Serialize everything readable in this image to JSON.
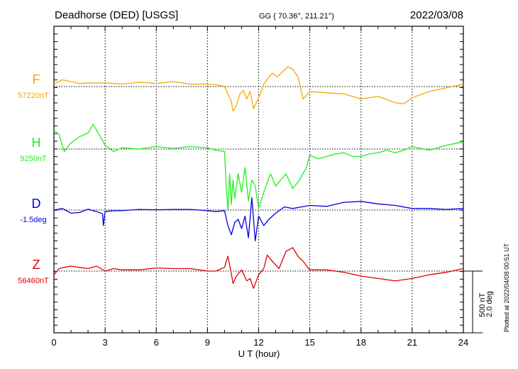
{
  "header": {
    "station": "Deadhorse (DED)  [USGS]",
    "coords": "GG ( 70.36°, 211.21°)",
    "date": "2022/03/08"
  },
  "footer": {
    "xlabel": "U T (hour)",
    "plotted": "Plotted at 2022/04/08 00:51 UT"
  },
  "scale_bar": {
    "line1": "500 nT",
    "line2": "2.0 deg"
  },
  "chart_data": {
    "type": "line",
    "xlim": [
      0,
      24
    ],
    "xticks": [
      "0",
      "3",
      "6",
      "9",
      "12",
      "15",
      "18",
      "21",
      "24"
    ],
    "xlabel": "U T (hour)",
    "grid": "dotted vertical at 3-hour intervals",
    "series": [
      {
        "name": "F",
        "baseline_label": "57220nT",
        "color": "#f5a800",
        "unit": "nT",
        "x": [
          0,
          0.5,
          1,
          1.5,
          2,
          2.5,
          3,
          4,
          5,
          6,
          7,
          8,
          9,
          9.5,
          10,
          10.2,
          10.4,
          10.5,
          10.7,
          10.9,
          11.1,
          11.3,
          11.5,
          11.7,
          11.9,
          12.1,
          12.3,
          12.5,
          12.8,
          13.1,
          13.4,
          13.7,
          14,
          14.3,
          14.6,
          15,
          16,
          17,
          18,
          19,
          20,
          20.5,
          21,
          22,
          23,
          24
        ],
        "y": [
          20,
          55,
          40,
          25,
          30,
          28,
          30,
          20,
          35,
          25,
          40,
          20,
          20,
          15,
          0,
          -60,
          -120,
          -200,
          -150,
          -60,
          -30,
          -100,
          -40,
          -180,
          -120,
          -60,
          20,
          60,
          110,
          80,
          120,
          160,
          140,
          80,
          -100,
          -40,
          -50,
          -60,
          -100,
          -80,
          -130,
          -140,
          -90,
          -40,
          -10,
          20
        ]
      },
      {
        "name": "H",
        "baseline_label": "9250nT",
        "color": "#22ee22",
        "unit": "nT",
        "x": [
          0,
          0.3,
          0.6,
          1,
          1.5,
          2,
          2.3,
          2.6,
          3,
          3.5,
          4,
          5,
          6,
          7,
          8,
          9,
          9.5,
          10,
          10.1,
          10.2,
          10.3,
          10.4,
          10.5,
          10.6,
          10.8,
          11,
          11.2,
          11.4,
          11.6,
          11.8,
          12,
          12.3,
          12.7,
          13,
          13.3,
          13.6,
          14,
          14.4,
          14.8,
          15,
          15.5,
          16,
          16.5,
          17,
          17.5,
          18,
          18.5,
          19,
          19.5,
          20,
          20.5,
          21,
          22,
          23,
          23.7,
          24
        ],
        "y": [
          150,
          120,
          -20,
          50,
          100,
          130,
          200,
          130,
          30,
          -20,
          10,
          0,
          20,
          5,
          20,
          10,
          -10,
          -20,
          -300,
          -500,
          -200,
          -450,
          -250,
          -400,
          -200,
          -350,
          -150,
          -420,
          -250,
          -300,
          -480,
          -350,
          -200,
          -300,
          -250,
          -200,
          -320,
          -250,
          -150,
          -50,
          -80,
          -60,
          -40,
          -30,
          -60,
          -60,
          -40,
          -30,
          -10,
          -30,
          -10,
          20,
          -10,
          30,
          50,
          50
        ]
      },
      {
        "name": "D",
        "baseline_label": "-1.5deg",
        "color": "#0000dd",
        "unit": "deg",
        "x": [
          0,
          0.5,
          1,
          1.5,
          2,
          2.5,
          2.85,
          2.9,
          3,
          3.5,
          4,
          5,
          6,
          7,
          8,
          9,
          9.5,
          10,
          10.2,
          10.4,
          10.6,
          10.8,
          11,
          11.2,
          11.4,
          11.6,
          11.8,
          12,
          12.3,
          12.6,
          13,
          13.5,
          14,
          14.5,
          15,
          16,
          17,
          18,
          19,
          20,
          21,
          22,
          23,
          24
        ],
        "y": [
          0,
          0.05,
          -0.1,
          -0.08,
          0.03,
          -0.05,
          -0.12,
          -0.5,
          -0.05,
          -0.02,
          -0.02,
          0.02,
          0.01,
          0.02,
          0.02,
          -0.02,
          -0.05,
          -0.02,
          -0.5,
          -0.8,
          -0.4,
          -0.3,
          -0.6,
          -0.2,
          -0.9,
          0.4,
          -1.0,
          -0.2,
          -0.5,
          -0.3,
          -0.1,
          0.1,
          0.05,
          0.1,
          0.15,
          0.12,
          0.25,
          0.28,
          0.2,
          0.15,
          0.05,
          0.05,
          0.02,
          0.05
        ]
      },
      {
        "name": "Z",
        "baseline_label": "56460nT",
        "color": "#dd0000",
        "unit": "nT",
        "x": [
          0,
          0.3,
          0.6,
          1,
          1.5,
          2,
          2.5,
          3,
          3.5,
          4,
          5,
          6,
          7,
          8,
          9,
          9.5,
          10,
          10.2,
          10.4,
          10.5,
          10.7,
          11,
          11.3,
          11.5,
          11.7,
          12,
          12.3,
          12.5,
          12.8,
          13.2,
          13.6,
          14,
          14.3,
          14.6,
          15,
          16,
          17,
          18,
          19,
          20,
          21,
          22,
          23,
          24
        ],
        "y": [
          -30,
          20,
          30,
          40,
          30,
          20,
          40,
          0,
          20,
          10,
          10,
          25,
          20,
          20,
          0,
          0,
          30,
          120,
          -20,
          -100,
          -40,
          10,
          -80,
          -60,
          -140,
          -30,
          20,
          130,
          80,
          20,
          160,
          190,
          120,
          80,
          10,
          10,
          -10,
          -40,
          -60,
          -80,
          -60,
          -30,
          -10,
          20
        ]
      }
    ]
  }
}
